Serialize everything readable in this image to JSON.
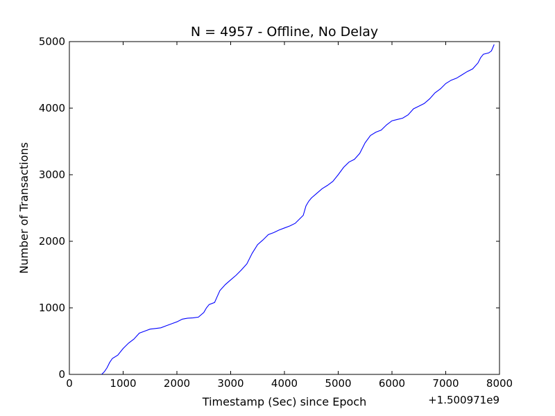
{
  "chart_data": {
    "type": "line",
    "title": "N = 4957 - Offline, No Delay",
    "xlabel": "Timestamp (Sec) since Epoch",
    "ylabel": "Number of Transactions",
    "x_offset_label": "+1.500971e9",
    "xlim": [
      0,
      8000
    ],
    "ylim": [
      0,
      5000
    ],
    "xticks": [
      "0",
      "1000",
      "2000",
      "3000",
      "4000",
      "5000",
      "6000",
      "7000",
      "8000"
    ],
    "yticks": [
      "0",
      "1000",
      "2000",
      "3000",
      "4000",
      "5000"
    ],
    "grid": false,
    "legend": "none",
    "line_color": "#0000ff",
    "series": [
      {
        "x": [
          600,
          650,
          700,
          750,
          800,
          900,
          1000,
          1100,
          1200,
          1300,
          1400,
          1500,
          1600,
          1700,
          1800,
          1900,
          2000,
          2100,
          2200,
          2300,
          2400,
          2500,
          2550,
          2600,
          2700,
          2750,
          2800,
          2900,
          3000,
          3100,
          3200,
          3300,
          3400,
          3500,
          3600,
          3700,
          3800,
          3900,
          4000,
          4100,
          4200,
          4300,
          4350,
          4400,
          4450,
          4500,
          4600,
          4700,
          4800,
          4900,
          5000,
          5100,
          5200,
          5300,
          5400,
          5500,
          5600,
          5700,
          5800,
          5900,
          6000,
          6100,
          6200,
          6300,
          6400,
          6500,
          6600,
          6700,
          6800,
          6900,
          7000,
          7100,
          7200,
          7300,
          7400,
          7500,
          7600,
          7650,
          7700,
          7800,
          7850,
          7900
        ],
        "y": [
          0,
          40,
          100,
          180,
          240,
          290,
          390,
          470,
          530,
          620,
          650,
          680,
          690,
          700,
          730,
          760,
          790,
          830,
          845,
          850,
          860,
          930,
          1000,
          1050,
          1080,
          1170,
          1260,
          1350,
          1420,
          1490,
          1570,
          1660,
          1820,
          1950,
          2020,
          2100,
          2130,
          2170,
          2200,
          2230,
          2270,
          2350,
          2390,
          2530,
          2600,
          2650,
          2720,
          2790,
          2840,
          2900,
          3000,
          3110,
          3190,
          3230,
          3320,
          3480,
          3590,
          3640,
          3670,
          3750,
          3810,
          3830,
          3850,
          3900,
          3990,
          4030,
          4070,
          4140,
          4230,
          4290,
          4370,
          4420,
          4450,
          4500,
          4550,
          4590,
          4680,
          4760,
          4810,
          4830,
          4860,
          4957
        ]
      }
    ]
  }
}
